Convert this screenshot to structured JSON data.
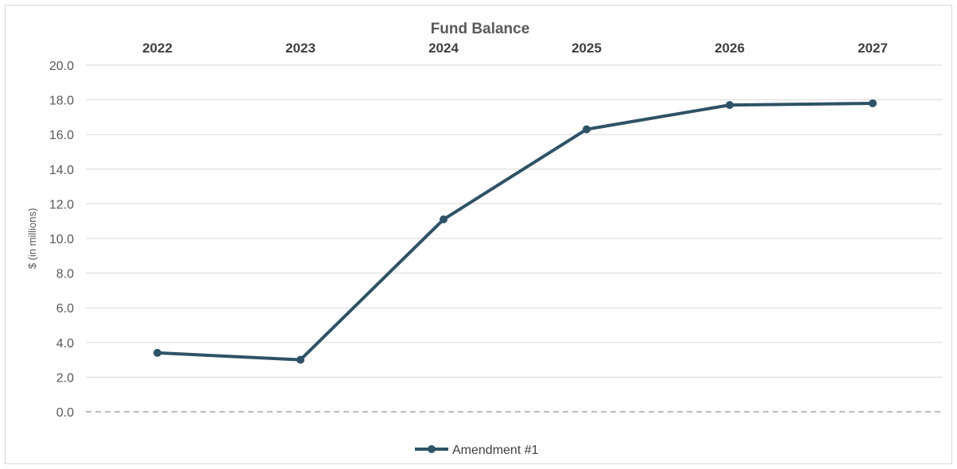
{
  "chart_data": {
    "type": "line",
    "title": "Fund Balance",
    "xlabel": "",
    "ylabel": "$ (in millions)",
    "categories": [
      "2022",
      "2023",
      "2024",
      "2025",
      "2026",
      "2027"
    ],
    "series": [
      {
        "name": "Amendment #1",
        "values": [
          3.4,
          3.0,
          11.1,
          16.3,
          17.7,
          17.8
        ]
      }
    ],
    "ylim": [
      0,
      20
    ],
    "yticks": [
      "0.0",
      "2.0",
      "4.0",
      "6.0",
      "8.0",
      "10.0",
      "12.0",
      "14.0",
      "16.0",
      "18.0",
      "20.0"
    ],
    "x_axis_position": "top",
    "grid": true,
    "legend_position": "bottom",
    "colors": {
      "series": "#2e5266",
      "grid": "#d9d9d9",
      "zero_line": "#a6a6a6"
    }
  }
}
